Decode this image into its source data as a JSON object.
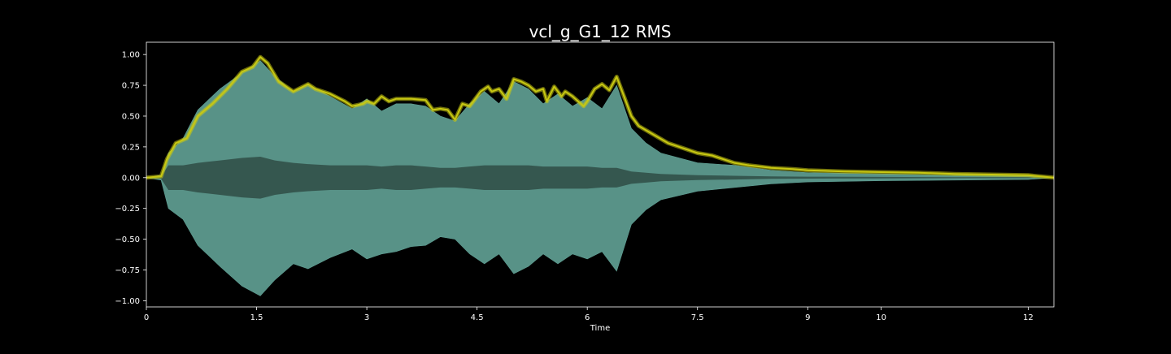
{
  "chart_data": {
    "type": "area",
    "title": "vcl_g_G1_12 RMS",
    "xlabel": "Time",
    "ylabel": "",
    "xlim": [
      0,
      12.35
    ],
    "ylim": [
      -1.05,
      1.1
    ],
    "x_ticks": [
      0,
      1.5,
      3,
      4.5,
      6,
      7.5,
      9,
      10,
      12
    ],
    "x_tick_labels": [
      "0",
      "1.5",
      "3",
      "4.5",
      "6",
      "7.5",
      "9",
      "10",
      "12"
    ],
    "y_ticks": [
      1.0,
      0.75,
      0.5,
      0.25,
      0.0,
      -0.25,
      -0.5,
      -0.75,
      -1.0
    ],
    "y_tick_labels": [
      "1.00",
      "0.75",
      "0.50",
      "0.25",
      "0.00",
      "−0.25",
      "−0.50",
      "−0.75",
      "−1.00"
    ],
    "grid": false,
    "legend": "none",
    "colors": {
      "background": "#000000",
      "waveform_outer": "#5f9e93",
      "waveform_inner": "#35574f",
      "rms": "#c8c812",
      "axes": "#ffffff",
      "text": "#ffffff"
    },
    "series": [
      {
        "type": "waveform",
        "x": [
          0,
          0.2,
          0.3,
          0.5,
          0.7,
          1.0,
          1.3,
          1.55,
          1.75,
          2.0,
          2.2,
          2.5,
          2.8,
          3.0,
          3.2,
          3.4,
          3.6,
          3.8,
          4.0,
          4.2,
          4.4,
          4.6,
          4.8,
          5.0,
          5.2,
          5.4,
          5.6,
          5.8,
          6.0,
          6.2,
          6.4,
          6.6,
          6.8,
          7.0,
          7.5,
          8.0,
          8.5,
          9.0,
          10.0,
          11.0,
          12.0,
          12.35
        ],
        "upper": [
          0.0,
          0.02,
          0.2,
          0.32,
          0.55,
          0.72,
          0.85,
          0.95,
          0.82,
          0.7,
          0.76,
          0.66,
          0.56,
          0.64,
          0.54,
          0.6,
          0.6,
          0.58,
          0.5,
          0.46,
          0.6,
          0.7,
          0.6,
          0.78,
          0.72,
          0.6,
          0.68,
          0.58,
          0.65,
          0.56,
          0.75,
          0.4,
          0.28,
          0.2,
          0.12,
          0.1,
          0.06,
          0.04,
          0.03,
          0.02,
          0.015,
          0.0
        ],
        "lower": [
          0.0,
          -0.02,
          -0.25,
          -0.34,
          -0.55,
          -0.72,
          -0.88,
          -0.96,
          -0.83,
          -0.7,
          -0.74,
          -0.65,
          -0.58,
          -0.66,
          -0.62,
          -0.6,
          -0.56,
          -0.55,
          -0.48,
          -0.5,
          -0.62,
          -0.7,
          -0.62,
          -0.78,
          -0.72,
          -0.62,
          -0.7,
          -0.62,
          -0.66,
          -0.6,
          -0.76,
          -0.38,
          -0.26,
          -0.18,
          -0.11,
          -0.08,
          -0.05,
          -0.035,
          -0.025,
          -0.02,
          -0.015,
          0.0
        ],
        "inner_upper": [
          0.0,
          0.01,
          0.1,
          0.1,
          0.12,
          0.14,
          0.16,
          0.17,
          0.14,
          0.12,
          0.11,
          0.1,
          0.1,
          0.1,
          0.09,
          0.1,
          0.1,
          0.09,
          0.08,
          0.08,
          0.09,
          0.1,
          0.1,
          0.1,
          0.1,
          0.09,
          0.09,
          0.09,
          0.09,
          0.08,
          0.08,
          0.05,
          0.04,
          0.03,
          0.02,
          0.015,
          0.01,
          0.008,
          0.006,
          0.004,
          0.003,
          0.0
        ],
        "inner_lower": [
          0.0,
          -0.01,
          -0.1,
          -0.1,
          -0.12,
          -0.14,
          -0.16,
          -0.17,
          -0.14,
          -0.12,
          -0.11,
          -0.1,
          -0.1,
          -0.1,
          -0.09,
          -0.1,
          -0.1,
          -0.09,
          -0.08,
          -0.08,
          -0.09,
          -0.1,
          -0.1,
          -0.1,
          -0.1,
          -0.09,
          -0.09,
          -0.09,
          -0.09,
          -0.08,
          -0.08,
          -0.05,
          -0.04,
          -0.03,
          -0.02,
          -0.015,
          -0.01,
          -0.008,
          -0.006,
          -0.004,
          -0.003,
          0.0
        ]
      },
      {
        "type": "rms",
        "x": [
          0,
          0.2,
          0.28,
          0.4,
          0.55,
          0.7,
          0.9,
          1.1,
          1.3,
          1.45,
          1.55,
          1.65,
          1.8,
          2.0,
          2.1,
          2.2,
          2.3,
          2.5,
          2.7,
          2.8,
          2.95,
          3.0,
          3.1,
          3.2,
          3.3,
          3.4,
          3.6,
          3.8,
          3.9,
          4.0,
          4.1,
          4.2,
          4.3,
          4.4,
          4.55,
          4.65,
          4.7,
          4.8,
          4.9,
          5.0,
          5.1,
          5.2,
          5.3,
          5.4,
          5.45,
          5.55,
          5.65,
          5.7,
          5.8,
          5.95,
          6.0,
          6.1,
          6.2,
          6.3,
          6.4,
          6.5,
          6.6,
          6.7,
          6.9,
          7.1,
          7.3,
          7.5,
          7.7,
          7.9,
          8.0,
          8.2,
          8.5,
          8.8,
          9.0,
          9.5,
          10.0,
          10.5,
          11.0,
          11.5,
          12.0,
          12.35
        ],
        "y": [
          0.0,
          0.01,
          0.15,
          0.28,
          0.32,
          0.5,
          0.6,
          0.72,
          0.86,
          0.9,
          0.98,
          0.93,
          0.78,
          0.7,
          0.73,
          0.76,
          0.72,
          0.68,
          0.62,
          0.58,
          0.6,
          0.62,
          0.6,
          0.66,
          0.62,
          0.64,
          0.64,
          0.63,
          0.55,
          0.56,
          0.55,
          0.47,
          0.6,
          0.58,
          0.7,
          0.74,
          0.7,
          0.72,
          0.64,
          0.8,
          0.78,
          0.75,
          0.7,
          0.72,
          0.62,
          0.74,
          0.66,
          0.7,
          0.66,
          0.58,
          0.62,
          0.72,
          0.76,
          0.71,
          0.82,
          0.66,
          0.5,
          0.42,
          0.35,
          0.28,
          0.24,
          0.2,
          0.18,
          0.14,
          0.12,
          0.1,
          0.08,
          0.07,
          0.06,
          0.05,
          0.045,
          0.04,
          0.03,
          0.025,
          0.02,
          0.0
        ]
      }
    ]
  }
}
